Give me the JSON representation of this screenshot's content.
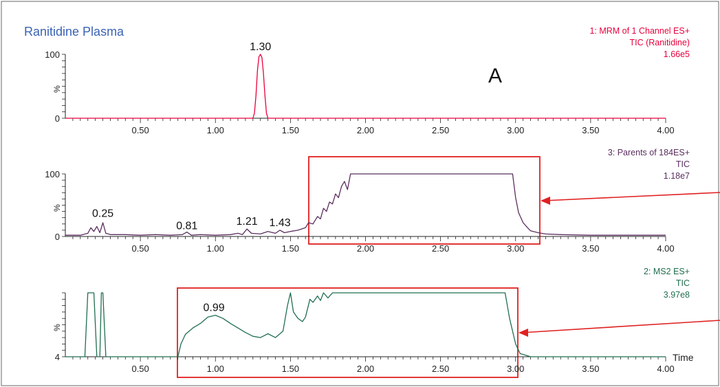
{
  "chart_data": [
    {
      "type": "line",
      "title": "Ranitidine Plasma",
      "info_lines": [
        "1: MRM of 1 Channel ES+",
        "TIC (Ranitidine)",
        "1.66e5"
      ],
      "ylabel": "%",
      "y_ticks": [
        "0",
        "100"
      ],
      "ylim": [
        0,
        100
      ],
      "xlim": [
        0,
        4.0
      ],
      "x_tick_labels": [
        "0.50",
        "1.00",
        "1.50",
        "2.00",
        "2.50",
        "3.00",
        "3.50",
        "4.00"
      ],
      "color": "#e8003c",
      "peak_labels": [
        {
          "x": 1.3,
          "y": 100,
          "text": "1.30"
        }
      ],
      "series": [
        {
          "x": [
            0.0,
            1.0,
            1.25,
            1.26,
            1.27,
            1.28,
            1.29,
            1.3,
            1.31,
            1.32,
            1.33,
            1.34,
            1.35,
            1.5,
            4.0
          ],
          "y": [
            0,
            0,
            0,
            8,
            35,
            75,
            96,
            100,
            95,
            70,
            35,
            8,
            0,
            0,
            0
          ]
        }
      ],
      "annotation": "A"
    },
    {
      "type": "line",
      "title": "",
      "info_lines": [
        "3: Parents of 184ES+",
        "TIC",
        "1.18e7"
      ],
      "ylabel": "%",
      "y_ticks": [
        "0",
        "100"
      ],
      "ylim": [
        0,
        100
      ],
      "xlim": [
        0,
        4.0
      ],
      "x_tick_labels": [
        "0.50",
        "1.00",
        "1.50",
        "2.00",
        "2.50",
        "3.00",
        "3.50",
        "4.00"
      ],
      "color": "#5a2d5e",
      "peak_labels": [
        {
          "x": 0.25,
          "y": 25,
          "text": "0.25"
        },
        {
          "x": 0.81,
          "y": 5,
          "text": "0.81"
        },
        {
          "x": 1.21,
          "y": 12,
          "text": "1.21"
        },
        {
          "x": 1.43,
          "y": 10,
          "text": "1.43"
        }
      ],
      "series": [
        {
          "x": [
            0.0,
            0.1,
            0.15,
            0.17,
            0.19,
            0.21,
            0.23,
            0.25,
            0.27,
            0.3,
            0.4,
            0.5,
            0.6,
            0.7,
            0.78,
            0.81,
            0.84,
            0.9,
            1.0,
            1.1,
            1.15,
            1.18,
            1.21,
            1.24,
            1.3,
            1.35,
            1.4,
            1.43,
            1.46,
            1.5,
            1.55,
            1.6,
            1.62,
            1.65,
            1.68,
            1.7,
            1.72,
            1.74,
            1.76,
            1.78,
            1.8,
            1.82,
            1.84,
            1.86,
            1.88,
            1.9,
            2.98,
            3.0,
            3.02,
            3.05,
            3.08,
            3.1,
            3.15,
            3.2,
            3.3,
            3.5,
            4.0
          ],
          "y": [
            2,
            2,
            5,
            14,
            8,
            16,
            6,
            22,
            5,
            3,
            3,
            2,
            3,
            2,
            3,
            7,
            2,
            3,
            2,
            3,
            5,
            3,
            12,
            5,
            4,
            8,
            5,
            10,
            6,
            8,
            10,
            14,
            22,
            20,
            32,
            28,
            45,
            40,
            55,
            52,
            68,
            62,
            80,
            88,
            75,
            100,
            100,
            62,
            38,
            22,
            14,
            9,
            6,
            4,
            3,
            2,
            2
          ]
        }
      ]
    },
    {
      "type": "line",
      "title": "",
      "info_lines": [
        "2: MS2 ES+",
        "TIC",
        "3.97e8"
      ],
      "ylabel": "%",
      "y_ticks": [
        "4"
      ],
      "ylim": [
        0,
        100
      ],
      "xlim": [
        0,
        4.0
      ],
      "x_tick_labels": [
        "0.50",
        "1.00",
        "1.50",
        "2.00",
        "2.50",
        "3.00",
        "3.50",
        "4.00"
      ],
      "xlabel": "Time",
      "color": "#1f6e4e",
      "peak_labels": [
        {
          "x": 0.99,
          "y": 65,
          "text": "0.99"
        }
      ],
      "series": [
        {
          "x": [
            0.0,
            0.13,
            0.15,
            0.17,
            0.19,
            0.21,
            0.23,
            0.24,
            0.25,
            0.27,
            0.28,
            0.3,
            0.7,
            0.75,
            0.77,
            0.8,
            0.85,
            0.9,
            0.95,
            1.0,
            1.05,
            1.1,
            1.15,
            1.2,
            1.25,
            1.3,
            1.35,
            1.4,
            1.45,
            1.48,
            1.5,
            1.52,
            1.55,
            1.58,
            1.6,
            1.63,
            1.65,
            1.68,
            1.7,
            1.72,
            1.75,
            1.78,
            1.8,
            2.9,
            2.93,
            2.96,
            3.0,
            3.03,
            3.06,
            3.1,
            4.0
          ],
          "y": [
            0,
            0,
            100,
            100,
            100,
            0,
            0,
            100,
            100,
            0,
            0,
            0,
            0,
            0,
            20,
            35,
            45,
            52,
            62,
            65,
            60,
            52,
            45,
            38,
            32,
            30,
            36,
            30,
            40,
            80,
            100,
            70,
            60,
            55,
            62,
            90,
            85,
            95,
            88,
            100,
            92,
            100,
            100,
            100,
            100,
            60,
            20,
            5,
            3,
            0,
            0
          ]
        }
      ]
    }
  ]
}
